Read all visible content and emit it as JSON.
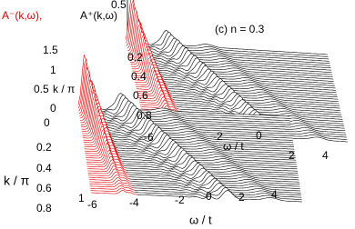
{
  "legend": {
    "minus": "A⁻(k,ω),",
    "plus": "A⁺(k,ω)"
  },
  "panel_label": "(c) n = 0.3",
  "top_tick": "0.5",
  "back_panel": {
    "k_label": "k / π",
    "omega_label": "ω / t",
    "height_ticks": [
      "1.5",
      "1",
      "0.5",
      "0"
    ],
    "k_ticks": [
      "0.2",
      "0.4",
      "0.6",
      "0.8"
    ],
    "omega_ticks": [
      "-6",
      "-2",
      "0",
      "2",
      "4"
    ]
  },
  "front_panel": {
    "k_label": "k / π",
    "omega_label": "ω / t",
    "k_ticks": [
      "0",
      "0.2",
      "0.4",
      "0.6",
      "0.8",
      "1"
    ],
    "omega_ticks": [
      "-6",
      "-4",
      "-2",
      "0",
      "2",
      "4"
    ]
  }
}
